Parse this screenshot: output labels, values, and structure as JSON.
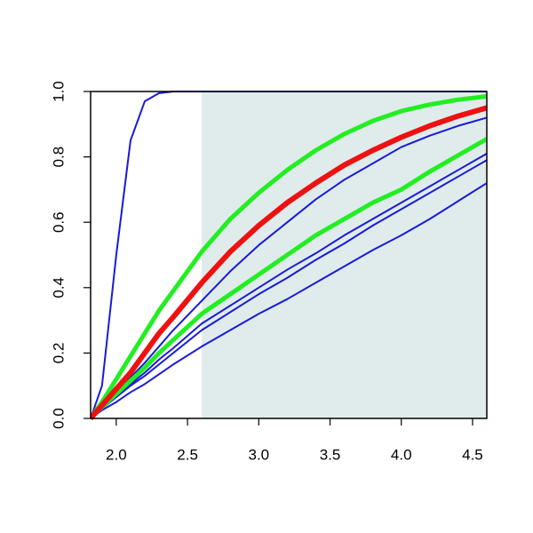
{
  "chart_data": {
    "type": "line",
    "x": [
      1.82,
      1.9,
      2.0,
      2.1,
      2.2,
      2.3,
      2.4,
      2.6,
      2.8,
      3.0,
      3.2,
      3.4,
      3.6,
      3.8,
      4.0,
      4.2,
      4.4,
      4.6
    ],
    "series": [
      {
        "color": "#1a1ad6",
        "lw": 2,
        "values": [
          0,
          0.1,
          0.5,
          0.85,
          0.97,
          0.995,
          1,
          1,
          1,
          1,
          1,
          1,
          1,
          1,
          1,
          1,
          1,
          1
        ]
      },
      {
        "color": "#1a1ad6",
        "lw": 2,
        "values": [
          0,
          0.025,
          0.05,
          0.08,
          0.105,
          0.135,
          0.165,
          0.22,
          0.27,
          0.32,
          0.365,
          0.415,
          0.465,
          0.515,
          0.56,
          0.61,
          0.665,
          0.72
        ]
      },
      {
        "color": "#1a1ad6",
        "lw": 2,
        "values": [
          0,
          0.03,
          0.065,
          0.1,
          0.13,
          0.165,
          0.2,
          0.27,
          0.325,
          0.38,
          0.43,
          0.485,
          0.535,
          0.59,
          0.64,
          0.69,
          0.74,
          0.79
        ]
      },
      {
        "color": "#1a1ad6",
        "lw": 2,
        "values": [
          0,
          0.03,
          0.07,
          0.105,
          0.14,
          0.18,
          0.215,
          0.29,
          0.345,
          0.4,
          0.455,
          0.505,
          0.56,
          0.61,
          0.66,
          0.71,
          0.76,
          0.81
        ]
      },
      {
        "color": "#1a1ad6",
        "lw": 2,
        "values": [
          0,
          0.035,
          0.08,
          0.125,
          0.17,
          0.22,
          0.27,
          0.36,
          0.45,
          0.53,
          0.6,
          0.67,
          0.73,
          0.78,
          0.83,
          0.865,
          0.895,
          0.92
        ]
      },
      {
        "color": "#22ee22",
        "lw": 5,
        "values": [
          0,
          0.035,
          0.075,
          0.115,
          0.155,
          0.2,
          0.24,
          0.32,
          0.38,
          0.44,
          0.5,
          0.56,
          0.61,
          0.66,
          0.7,
          0.755,
          0.805,
          0.855
        ]
      },
      {
        "color": "#22ee22",
        "lw": 5,
        "values": [
          0,
          0.05,
          0.12,
          0.19,
          0.26,
          0.33,
          0.39,
          0.51,
          0.61,
          0.69,
          0.76,
          0.82,
          0.87,
          0.91,
          0.94,
          0.96,
          0.975,
          0.985
        ]
      },
      {
        "color": "#ee1111",
        "lw": 6,
        "values": [
          0,
          0.04,
          0.09,
          0.14,
          0.2,
          0.26,
          0.31,
          0.415,
          0.51,
          0.59,
          0.66,
          0.72,
          0.775,
          0.82,
          0.86,
          0.895,
          0.925,
          0.95
        ]
      }
    ],
    "shade_xlim": [
      2.6,
      4.6
    ],
    "shade_color": "#dfeceb",
    "xlim": [
      1.82,
      4.6
    ],
    "ylim": [
      0,
      1
    ],
    "xticks": [
      {
        "value": 2,
        "label": "2.0"
      },
      2.5,
      {
        "value": 3,
        "label": "3.0"
      },
      3.5,
      {
        "value": 4,
        "label": "4.0"
      },
      4.5
    ],
    "yticks": [
      {
        "value": 0,
        "label": "0.0"
      },
      0.2,
      0.4,
      0.6,
      0.8,
      {
        "value": 1,
        "label": "1.0"
      }
    ]
  }
}
